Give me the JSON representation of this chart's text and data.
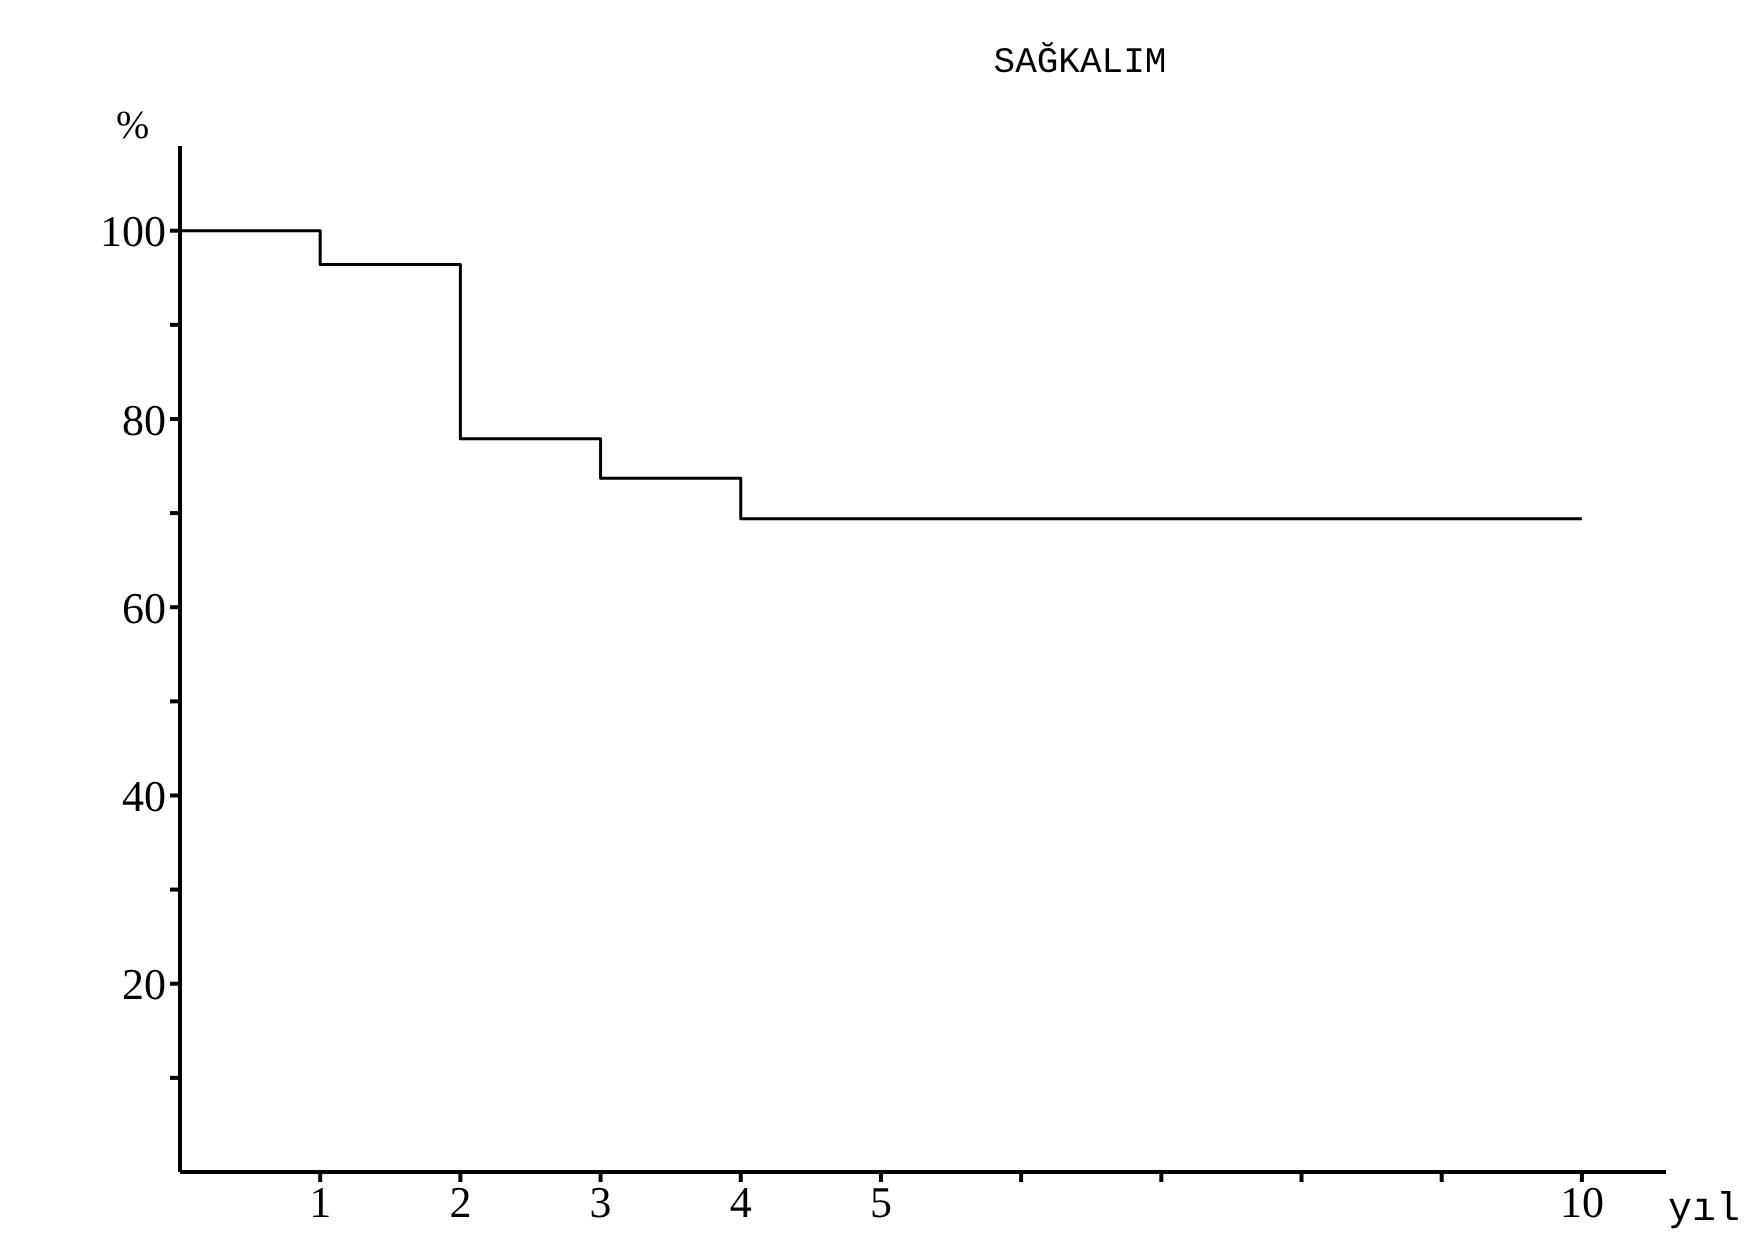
{
  "chart_data": {
    "type": "step",
    "title": "SAĞKALIM",
    "xlabel": "yıl",
    "ylabel": "%",
    "x": [
      0,
      1,
      2,
      3,
      4,
      10
    ],
    "values": [
      100,
      96.4,
      77.9,
      73.7,
      69.4,
      69.4
    ],
    "color": "#000000",
    "xlim": [
      0,
      10.6
    ],
    "xticks": [
      1,
      2,
      3,
      4,
      5,
      {
        "value": 6,
        "label": null
      },
      {
        "value": 7,
        "label": null
      },
      {
        "value": 8,
        "label": null
      },
      {
        "value": 9,
        "label": null
      },
      10
    ],
    "ylim": [
      0,
      109
    ],
    "yticks": [
      {
        "value": 10,
        "label": null
      },
      20,
      {
        "value": 30,
        "label": null
      },
      40,
      {
        "value": 50,
        "label": null
      },
      60,
      {
        "value": 70,
        "label": null
      },
      80,
      {
        "value": 90,
        "label": null
      },
      100
    ],
    "grid": false,
    "marker": "none",
    "line_style": "solid"
  }
}
